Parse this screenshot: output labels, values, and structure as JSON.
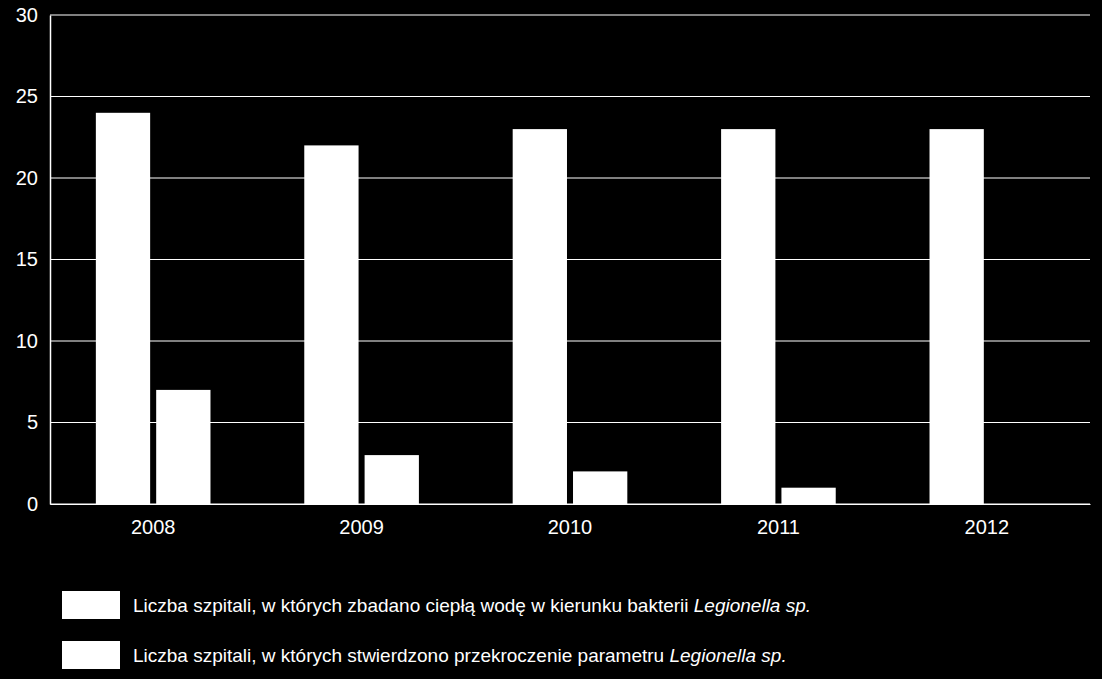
{
  "chart_data": {
    "type": "bar",
    "categories": [
      "2008",
      "2009",
      "2010",
      "2011",
      "2012"
    ],
    "series": [
      {
        "name": "Liczba szpitali, w których zbadano ciepłą wodę w kierunku bakterii Legionella sp.",
        "color": "#ffffff",
        "values": [
          24,
          22,
          23,
          23,
          23
        ]
      },
      {
        "name": "Liczba szpitali, w których stwierdzono przekroczenie parametru Legionella sp.",
        "color": "#ffffff",
        "values": [
          7,
          3,
          2,
          1,
          0
        ]
      }
    ],
    "ylim": [
      0,
      30
    ],
    "yticks": [
      0,
      5,
      10,
      15,
      20,
      25,
      30
    ],
    "grid": true,
    "legend": "bottom"
  }
}
